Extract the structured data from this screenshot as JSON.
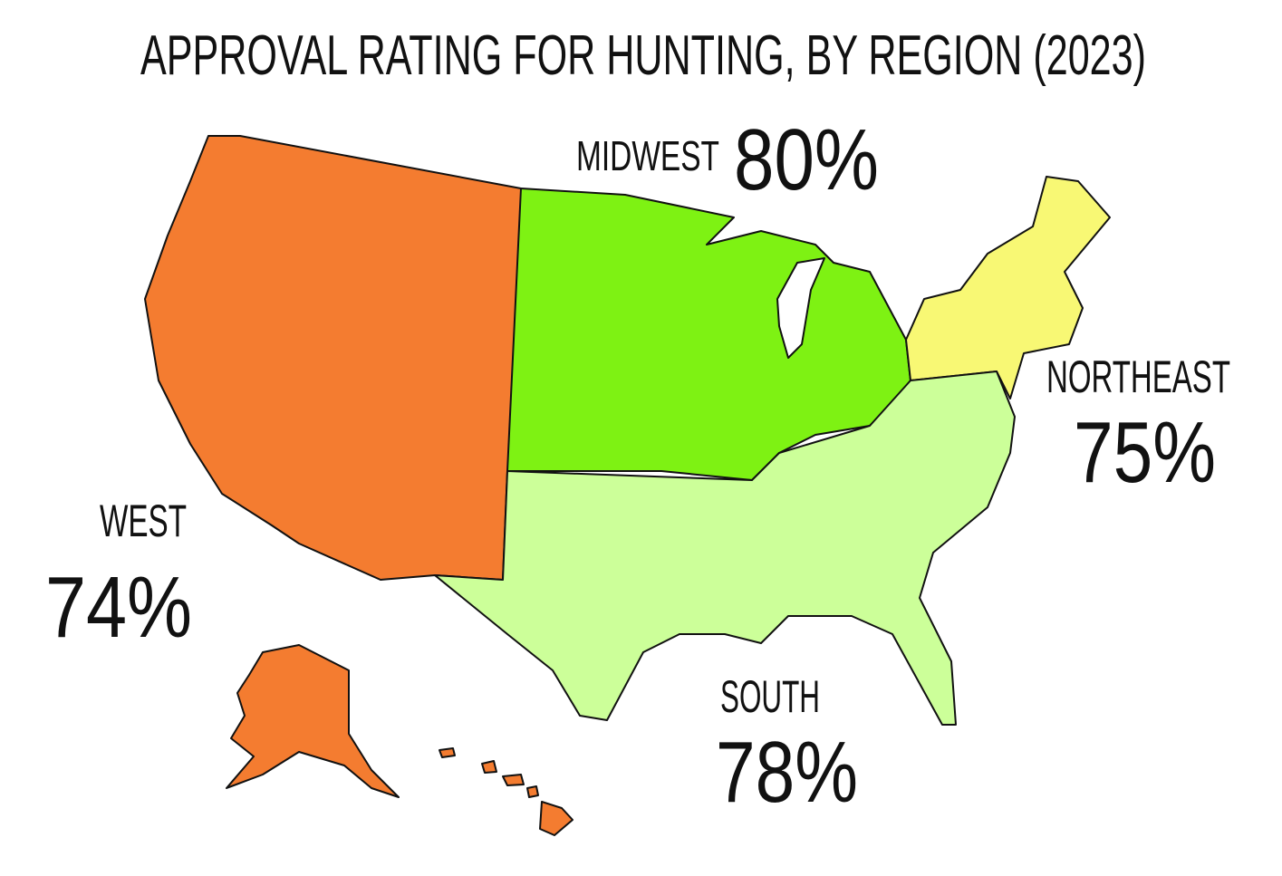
{
  "title": "APPROVAL RATING FOR HUNTING, BY REGION (2023)",
  "regions": [
    {
      "name": "WEST",
      "value": "74%",
      "color": "#f47c30"
    },
    {
      "name": "MIDWEST",
      "value": "80%",
      "color": "#7ef213"
    },
    {
      "name": "NORTHEAST",
      "value": "75%",
      "color": "#f8f874"
    },
    {
      "name": "SOUTH",
      "value": "78%",
      "color": "#ccff99"
    }
  ]
}
